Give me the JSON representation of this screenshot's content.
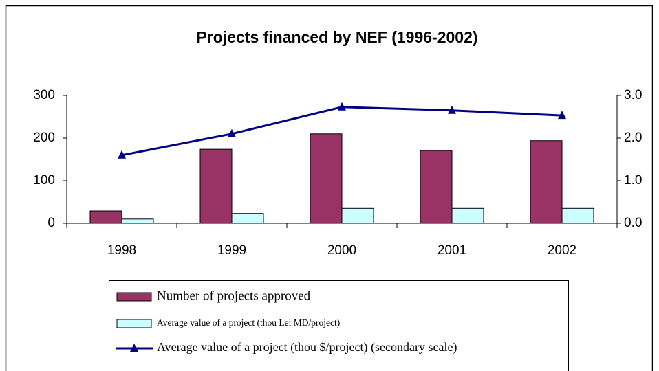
{
  "chart_data": {
    "type": "bar",
    "title": "Projects financed by NEF (1996-2002)",
    "categories": [
      "1998",
      "1999",
      "2000",
      "2001",
      "2002"
    ],
    "series": [
      {
        "name": "Number of projects approved",
        "color": "#993366",
        "type": "bar",
        "values": [
          29,
          174,
          210,
          171,
          194
        ]
      },
      {
        "name": "Average value of a project (thou Lei MD/project)",
        "color": "#ccffff",
        "type": "bar",
        "values": [
          10,
          23,
          35,
          35,
          35
        ]
      },
      {
        "name": "Average value of a project (thou $/project) (secondary scale)",
        "color": "#000080",
        "type": "line",
        "axis": "y2",
        "values": [
          1.6,
          2.1,
          2.73,
          2.65,
          2.53
        ]
      }
    ],
    "ylim": [
      0,
      300
    ],
    "yticks": [
      0,
      100,
      200,
      300
    ],
    "y2lim": [
      0,
      3
    ],
    "y2ticks": [
      {
        "value": 0,
        "label": "0.0"
      },
      {
        "value": 1,
        "label": "1.0"
      },
      {
        "value": 2,
        "label": "2.0"
      },
      {
        "value": 3,
        "label": "3.0"
      }
    ]
  }
}
